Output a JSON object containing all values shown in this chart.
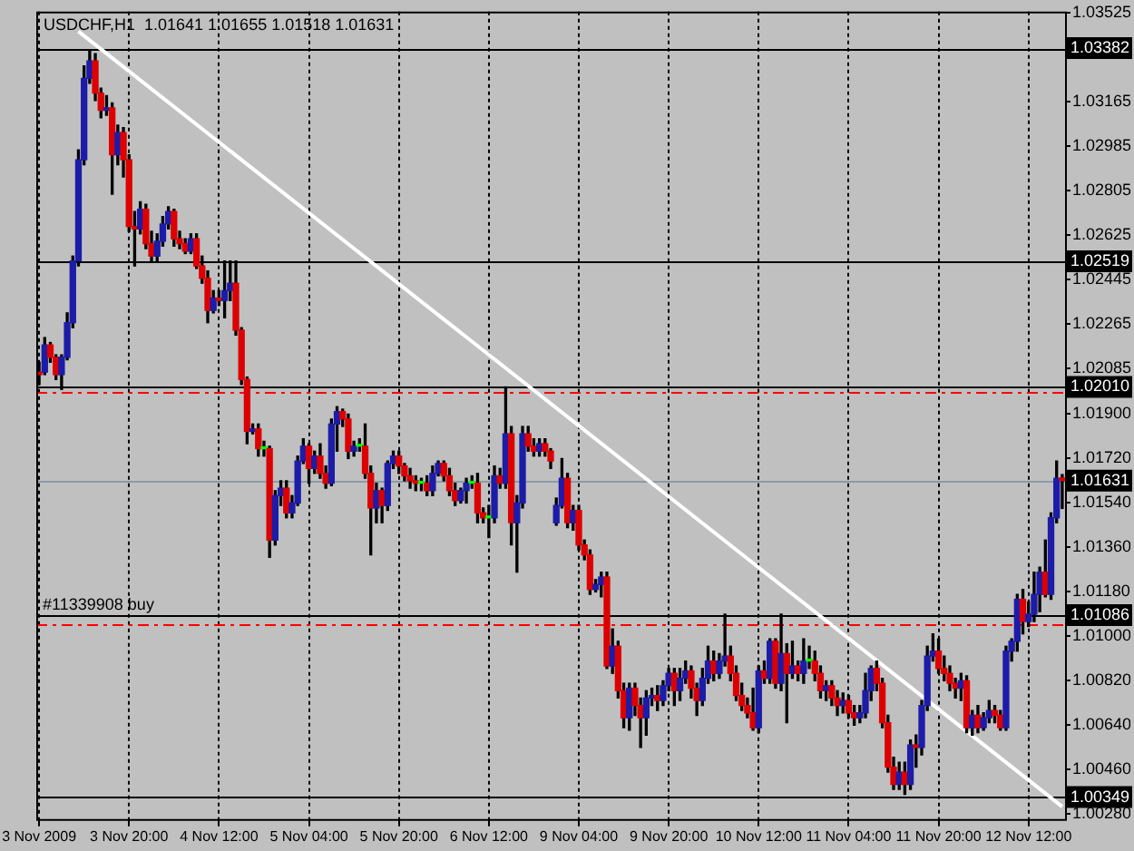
{
  "chart_data": {
    "type": "candlestick",
    "title": "USDCHF,H1  1.01641 1.01655 1.01518 1.01631",
    "categories": [
      "3 Nov 2009",
      null,
      null,
      null,
      null,
      null,
      null,
      null,
      null,
      null,
      null,
      null,
      null,
      null,
      null,
      null,
      "3 Nov 20:00",
      null,
      null,
      null,
      null,
      null,
      null,
      null,
      null,
      null,
      null,
      null,
      null,
      null,
      null,
      null,
      "4 Nov 12:00",
      null,
      null,
      null,
      null,
      null,
      null,
      null,
      null,
      null,
      null,
      null,
      null,
      null,
      null,
      null,
      "5 Nov 04:00",
      null,
      null,
      null,
      null,
      null,
      null,
      null,
      null,
      null,
      null,
      null,
      null,
      null,
      null,
      null,
      "5 Nov 20:00",
      null,
      null,
      null,
      null,
      null,
      null,
      null,
      null,
      null,
      null,
      null,
      null,
      null,
      null,
      null,
      "6 Nov 12:00",
      null,
      null,
      null,
      null,
      null,
      null,
      null,
      null,
      null,
      null,
      null,
      null,
      null,
      null,
      null,
      "9 Nov 04:00",
      null,
      null,
      null,
      null,
      null,
      null,
      null,
      null,
      null,
      null,
      null,
      null,
      null,
      null,
      null,
      "9 Nov 20:00",
      null,
      null,
      null,
      null,
      null,
      null,
      null,
      null,
      null,
      null,
      null,
      null,
      null,
      null,
      null,
      "10 Nov 12:00",
      null,
      null,
      null,
      null,
      null,
      null,
      null,
      null,
      null,
      null,
      null,
      null,
      null,
      null,
      null,
      "11 Nov 04:00",
      null,
      null,
      null,
      null,
      null,
      null,
      null,
      null,
      null,
      null,
      null,
      null,
      null,
      null,
      null,
      "11 Nov 20:00",
      null,
      null,
      null,
      null,
      null,
      null,
      null,
      null,
      null,
      null,
      null,
      null,
      null,
      null,
      null,
      "12 Nov 12:00",
      null,
      null,
      null,
      null,
      null,
      null
    ],
    "ohlc": [
      [
        1.0207,
        1.0211,
        1.0202,
        1.0206
      ],
      [
        1.0207,
        1.0221,
        1.0206,
        1.0218
      ],
      [
        1.0218,
        1.0219,
        1.0211,
        1.0213
      ],
      [
        1.0213,
        1.0214,
        1.0204,
        1.0206
      ],
      [
        1.0206,
        1.0214,
        1.02,
        1.0213
      ],
      [
        1.0213,
        1.0231,
        1.0212,
        1.0227
      ],
      [
        1.0227,
        1.0254,
        1.0225,
        1.0252
      ],
      [
        1.0252,
        1.0297,
        1.025,
        1.0293
      ],
      [
        1.0293,
        1.0331,
        1.0291,
        1.0326
      ],
      [
        1.0326,
        1.0337,
        1.0324,
        1.0333
      ],
      [
        1.0333,
        1.0336,
        1.0317,
        1.032
      ],
      [
        1.032,
        1.0322,
        1.031,
        1.0313
      ],
      [
        1.0313,
        1.0319,
        1.0311,
        1.0314
      ],
      [
        1.0314,
        1.0316,
        1.0279,
        1.0295
      ],
      [
        1.0295,
        1.0307,
        1.0291,
        1.0304
      ],
      [
        1.0304,
        1.0306,
        1.0286,
        1.0293
      ],
      [
        1.0293,
        1.0295,
        1.0264,
        1.0266
      ],
      [
        1.0266,
        1.0272,
        1.025,
        1.0265
      ],
      [
        1.0265,
        1.0276,
        1.0263,
        1.0273
      ],
      [
        1.0273,
        1.0275,
        1.0257,
        1.0259
      ],
      [
        1.0259,
        1.0264,
        1.0252,
        1.0254
      ],
      [
        1.0254,
        1.0263,
        1.0252,
        1.026
      ],
      [
        1.026,
        1.027,
        1.0258,
        1.0267
      ],
      [
        1.0267,
        1.0274,
        1.0265,
        1.0272
      ],
      [
        1.0272,
        1.0273,
        1.0258,
        1.0261
      ],
      [
        1.0261,
        1.0264,
        1.0257,
        1.0259
      ],
      [
        1.0259,
        1.0261,
        1.0255,
        1.0256
      ],
      [
        1.0256,
        1.0263,
        1.0255,
        1.0261
      ],
      [
        1.0261,
        1.0263,
        1.0249,
        1.025
      ],
      [
        1.025,
        1.0254,
        1.0243,
        1.0245
      ],
      [
        1.0245,
        1.0248,
        1.0227,
        1.0232
      ],
      [
        1.0232,
        1.024,
        1.0231,
        1.0237
      ],
      [
        1.0237,
        1.024,
        1.0234,
        1.0236
      ],
      [
        1.0236,
        1.0252,
        1.0229,
        1.024
      ],
      [
        1.024,
        1.0252,
        1.0236,
        1.0243
      ],
      [
        1.0243,
        1.0252,
        1.0222,
        1.0224
      ],
      [
        1.0224,
        1.0225,
        1.0202,
        1.0204
      ],
      [
        1.0204,
        1.0205,
        1.0178,
        1.0183
      ],
      [
        1.0183,
        1.0186,
        1.0182,
        1.0184
      ],
      [
        1.0184,
        1.0186,
        1.0173,
        1.0176
      ],
      [
        1.0176,
        1.0179,
        1.0173,
        1.0176
      ],
      [
        1.0176,
        1.0177,
        1.0132,
        1.0139
      ],
      [
        1.0139,
        1.0159,
        1.0137,
        1.0157
      ],
      [
        1.0157,
        1.0163,
        1.0153,
        1.016
      ],
      [
        1.016,
        1.0163,
        1.0148,
        1.015
      ],
      [
        1.015,
        1.0157,
        1.0148,
        1.0154
      ],
      [
        1.0154,
        1.0173,
        1.0153,
        1.0171
      ],
      [
        1.0171,
        1.018,
        1.017,
        1.0177
      ],
      [
        1.0177,
        1.0178,
        1.0162,
        1.0168
      ],
      [
        1.0168,
        1.0175,
        1.0166,
        1.0173
      ],
      [
        1.0173,
        1.0178,
        1.0164,
        1.0166
      ],
      [
        1.0166,
        1.0169,
        1.016,
        1.0162
      ],
      [
        1.0162,
        1.0188,
        1.0161,
        1.0186
      ],
      [
        1.0186,
        1.0193,
        1.0175,
        1.0191
      ],
      [
        1.0191,
        1.0192,
        1.0185,
        1.0188
      ],
      [
        1.0188,
        1.019,
        1.0172,
        1.0175
      ],
      [
        1.0175,
        1.0179,
        1.0173,
        1.0177
      ],
      [
        1.0177,
        1.018,
        1.0175,
        1.0177
      ],
      [
        1.0177,
        1.0186,
        1.0164,
        1.0166
      ],
      [
        1.0166,
        1.0169,
        1.0133,
        1.0152
      ],
      [
        1.0152,
        1.0162,
        1.0146,
        1.0159
      ],
      [
        1.0159,
        1.016,
        1.0146,
        1.0153
      ],
      [
        1.0153,
        1.0171,
        1.0151,
        1.017
      ],
      [
        1.017,
        1.0175,
        1.0168,
        1.0173
      ],
      [
        1.0173,
        1.0175,
        1.0166,
        1.0169
      ],
      [
        1.0169,
        1.017,
        1.0163,
        1.0165
      ],
      [
        1.0165,
        1.0168,
        1.016,
        1.0163
      ],
      [
        1.0163,
        1.0165,
        1.0159,
        1.0162
      ],
      [
        1.0162,
        1.0164,
        1.0159,
        1.0162
      ],
      [
        1.0162,
        1.0165,
        1.0157,
        1.0159
      ],
      [
        1.0159,
        1.0169,
        1.0157,
        1.0166
      ],
      [
        1.0166,
        1.0171,
        1.0165,
        1.017
      ],
      [
        1.017,
        1.0171,
        1.0163,
        1.0165
      ],
      [
        1.0165,
        1.0168,
        1.0157,
        1.0159
      ],
      [
        1.0159,
        1.0162,
        1.0153,
        1.0155
      ],
      [
        1.0155,
        1.016,
        1.0154,
        1.0159
      ],
      [
        1.0159,
        1.0164,
        1.0154,
        1.0162
      ],
      [
        1.0162,
        1.0165,
        1.016,
        1.0162
      ],
      [
        1.0162,
        1.0166,
        1.0146,
        1.015
      ],
      [
        1.015,
        1.0152,
        1.0146,
        1.0148
      ],
      [
        1.0148,
        1.0153,
        1.014,
        1.0148
      ],
      [
        1.0148,
        1.0169,
        1.0146,
        1.0165
      ],
      [
        1.0165,
        1.0168,
        1.016,
        1.0162
      ],
      [
        1.0162,
        1.0201,
        1.016,
        1.0182
      ],
      [
        1.0182,
        1.0185,
        1.0137,
        1.0146
      ],
      [
        1.0146,
        1.0157,
        1.0126,
        1.0154
      ],
      [
        1.0154,
        1.0185,
        1.0152,
        1.0182
      ],
      [
        1.0182,
        1.0185,
        1.0175,
        1.0177
      ],
      [
        1.0177,
        1.018,
        1.0173,
        1.0175
      ],
      [
        1.0175,
        1.018,
        1.0173,
        1.0178
      ],
      [
        1.0178,
        1.018,
        1.0173,
        1.0175
      ],
      [
        1.0175,
        1.0176,
        1.0168,
        1.0171
      ],
      [
        1.0146,
        1.0156,
        1.0145,
        1.0153
      ],
      [
        1.0153,
        1.0172,
        1.0152,
        1.0164
      ],
      [
        1.0164,
        1.0166,
        1.0144,
        1.0146
      ],
      [
        1.0146,
        1.0153,
        1.0143,
        1.0151
      ],
      [
        1.0151,
        1.0153,
        1.0135,
        1.0137
      ],
      [
        1.0137,
        1.0139,
        1.0131,
        1.0133
      ],
      [
        1.0133,
        1.0135,
        1.0117,
        1.0119
      ],
      [
        1.0119,
        1.0123,
        1.0118,
        1.0121
      ],
      [
        1.0121,
        1.0126,
        1.0116,
        1.0124
      ],
      [
        1.0124,
        1.0126,
        1.0087,
        1.0088
      ],
      [
        1.0088,
        1.0103,
        1.0085,
        1.0096
      ],
      [
        1.0096,
        1.0098,
        1.0075,
        1.0078
      ],
      [
        1.0078,
        1.0081,
        1.0063,
        1.0067
      ],
      [
        1.0067,
        1.0081,
        1.0062,
        1.0079
      ],
      [
        1.0079,
        1.0081,
        1.0068,
        1.0072
      ],
      [
        1.0072,
        1.0075,
        1.0055,
        1.0067
      ],
      [
        1.0067,
        1.0078,
        1.006,
        1.0075
      ],
      [
        1.0075,
        1.0079,
        1.0072,
        1.0076
      ],
      [
        1.0076,
        1.008,
        1.007,
        1.0074
      ],
      [
        1.0074,
        1.0082,
        1.0072,
        1.008
      ],
      [
        1.008,
        1.0087,
        1.0078,
        1.0085
      ],
      [
        1.0085,
        1.0087,
        1.0072,
        1.0078
      ],
      [
        1.0078,
        1.0087,
        1.0074,
        1.0083
      ],
      [
        1.0083,
        1.009,
        1.0081,
        1.0086
      ],
      [
        1.0086,
        1.0088,
        1.0075,
        1.0079
      ],
      [
        1.0079,
        1.0081,
        1.0068,
        1.0074
      ],
      [
        1.0074,
        1.0087,
        1.0072,
        1.0083
      ],
      [
        1.0083,
        1.0096,
        1.0081,
        1.009
      ],
      [
        1.009,
        1.0094,
        1.0082,
        1.0085
      ],
      [
        1.0085,
        1.0093,
        1.0083,
        1.009
      ],
      [
        1.009,
        1.0109,
        1.0088,
        1.0092
      ],
      [
        1.0092,
        1.0096,
        1.0082,
        1.0085
      ],
      [
        1.0085,
        1.0088,
        1.0074,
        1.0076
      ],
      [
        1.0076,
        1.0081,
        1.007,
        1.0072
      ],
      [
        1.0072,
        1.0075,
        1.0067,
        1.0069
      ],
      [
        1.0069,
        1.0079,
        1.0062,
        1.0063
      ],
      [
        1.0063,
        1.0088,
        1.0061,
        1.0086
      ],
      [
        1.0086,
        1.009,
        1.0081,
        1.0083
      ],
      [
        1.0083,
        1.0099,
        1.0081,
        1.0098
      ],
      [
        1.0098,
        1.0099,
        1.0079,
        1.0081
      ],
      [
        1.0081,
        1.0109,
        1.0078,
        1.0093
      ],
      [
        1.0093,
        1.0097,
        1.0065,
        1.0085
      ],
      [
        1.0085,
        1.0098,
        1.0083,
        1.0088
      ],
      [
        1.0088,
        1.009,
        1.0082,
        1.0085
      ],
      [
        1.0085,
        1.0099,
        1.0081,
        1.009
      ],
      [
        1.009,
        1.0096,
        1.0087,
        1.009
      ],
      [
        1.009,
        1.0094,
        1.0082,
        1.0085
      ],
      [
        1.0085,
        1.0088,
        1.0075,
        1.0078
      ],
      [
        1.0078,
        1.0082,
        1.0074,
        1.008
      ],
      [
        1.008,
        1.0082,
        1.0072,
        1.0075
      ],
      [
        1.0075,
        1.0078,
        1.0068,
        1.0072
      ],
      [
        1.0072,
        1.0077,
        1.0069,
        1.0074
      ],
      [
        1.0074,
        1.0076,
        1.0067,
        1.0069
      ],
      [
        1.0069,
        1.0072,
        1.0064,
        1.0067
      ],
      [
        1.0067,
        1.0072,
        1.0065,
        1.0069
      ],
      [
        1.0069,
        1.0085,
        1.0067,
        1.0078
      ],
      [
        1.0078,
        1.0088,
        1.0074,
        1.0087
      ],
      [
        1.0087,
        1.009,
        1.0078,
        1.0081
      ],
      [
        1.0081,
        1.0083,
        1.0063,
        1.0065
      ],
      [
        1.0065,
        1.0068,
        1.0045,
        1.0047
      ],
      [
        1.0047,
        1.0051,
        1.0038,
        1.004
      ],
      [
        1.004,
        1.0049,
        1.0038,
        1.0045
      ],
      [
        1.0045,
        1.0049,
        1.0036,
        1.004
      ],
      [
        1.004,
        1.0058,
        1.0038,
        1.0056
      ],
      [
        1.0056,
        1.006,
        1.0047,
        1.0055
      ],
      [
        1.0055,
        1.0074,
        1.0052,
        1.0072
      ],
      [
        1.0072,
        1.0096,
        1.007,
        1.0092
      ],
      [
        1.0092,
        1.0101,
        1.009,
        1.0094
      ],
      [
        1.0094,
        1.0099,
        1.0085,
        1.0087
      ],
      [
        1.0087,
        1.0092,
        1.0082,
        1.0085
      ],
      [
        1.0085,
        1.0088,
        1.0078,
        1.0081
      ],
      [
        1.0081,
        1.0083,
        1.0075,
        1.0079
      ],
      [
        1.0079,
        1.0085,
        1.0074,
        1.0082
      ],
      [
        1.0082,
        1.0084,
        1.0061,
        1.0063
      ],
      [
        1.0063,
        1.007,
        1.006,
        1.0068
      ],
      [
        1.0068,
        1.0072,
        1.0061,
        1.0063
      ],
      [
        1.0063,
        1.0069,
        1.0062,
        1.0067
      ],
      [
        1.0067,
        1.0074,
        1.0065,
        1.007
      ],
      [
        1.007,
        1.0072,
        1.0065,
        1.0068
      ],
      [
        1.0068,
        1.007,
        1.0062,
        1.0063
      ],
      [
        1.0063,
        1.0096,
        1.0062,
        1.0094
      ],
      [
        1.0094,
        1.0099,
        1.009,
        1.0098
      ],
      [
        1.0098,
        1.0117,
        1.0094,
        1.0115
      ],
      [
        1.0115,
        1.0119,
        1.0101,
        1.0106
      ],
      [
        1.0106,
        1.0114,
        1.0104,
        1.0109
      ],
      [
        1.0109,
        1.0126,
        1.0106,
        1.0117
      ],
      [
        1.0117,
        1.0128,
        1.011,
        1.0126
      ],
      [
        1.0126,
        1.0139,
        1.0116,
        1.0117
      ],
      [
        1.0117,
        1.015,
        1.0115,
        1.0148
      ],
      [
        1.0148,
        1.0171,
        1.0146,
        1.0164
      ],
      [
        1.01641,
        1.01655,
        1.01518,
        1.01631
      ]
    ],
    "colors": [
      "#dd0000",
      "#1c1ca8",
      "#dd0000",
      "#dd0000",
      "#1c1ca8",
      "#1c1ca8",
      "#1c1ca8",
      "#1c1ca8",
      "#1c1ca8",
      "#1c1ca8",
      "#dd0000",
      "#dd0000",
      "#1c1ca8",
      "#dd0000",
      "#1c1ca8",
      "#dd0000",
      "#dd0000",
      "#dd0000",
      "#1c1ca8",
      "#dd0000",
      "#dd0000",
      "#1c1ca8",
      "#1c1ca8",
      "#1c1ca8",
      "#dd0000",
      "#dd0000",
      "#dd0000",
      "#1c1ca8",
      "#dd0000",
      "#dd0000",
      "#dd0000",
      "#1c1ca8",
      "#dd0000",
      "#1c1ca8",
      "#1c1ca8",
      "#dd0000",
      "#dd0000",
      "#dd0000",
      "#1c1ca8",
      "#dd0000",
      "#00ff00",
      "#dd0000",
      "#1c1ca8",
      "#1c1ca8",
      "#dd0000",
      "#1c1ca8",
      "#1c1ca8",
      "#1c1ca8",
      "#dd0000",
      "#1c1ca8",
      "#dd0000",
      "#dd0000",
      "#1c1ca8",
      "#1c1ca8",
      "#dd0000",
      "#dd0000",
      "#1c1ca8",
      "#00ff00",
      "#dd0000",
      "#dd0000",
      "#1c1ca8",
      "#dd0000",
      "#1c1ca8",
      "#1c1ca8",
      "#dd0000",
      "#dd0000",
      "#dd0000",
      "#dd0000",
      "#00ff00",
      "#dd0000",
      "#1c1ca8",
      "#1c1ca8",
      "#dd0000",
      "#dd0000",
      "#dd0000",
      "#1c1ca8",
      "#1c1ca8",
      "#00ff00",
      "#dd0000",
      "#dd0000",
      "#00ff00",
      "#1c1ca8",
      "#dd0000",
      "#1c1ca8",
      "#dd0000",
      "#1c1ca8",
      "#1c1ca8",
      "#dd0000",
      "#dd0000",
      "#1c1ca8",
      "#dd0000",
      "#dd0000",
      "#1c1ca8",
      "#1c1ca8",
      "#dd0000",
      "#1c1ca8",
      "#dd0000",
      "#dd0000",
      "#dd0000",
      "#1c1ca8",
      "#1c1ca8",
      "#dd0000",
      "#1c1ca8",
      "#dd0000",
      "#dd0000",
      "#1c1ca8",
      "#dd0000",
      "#dd0000",
      "#1c1ca8",
      "#1c1ca8",
      "#dd0000",
      "#1c1ca8",
      "#1c1ca8",
      "#dd0000",
      "#1c1ca8",
      "#1c1ca8",
      "#dd0000",
      "#dd0000",
      "#1c1ca8",
      "#1c1ca8",
      "#dd0000",
      "#1c1ca8",
      "#1c1ca8",
      "#dd0000",
      "#dd0000",
      "#dd0000",
      "#dd0000",
      "#dd0000",
      "#1c1ca8",
      "#dd0000",
      "#1c1ca8",
      "#dd0000",
      "#1c1ca8",
      "#dd0000",
      "#1c1ca8",
      "#dd0000",
      "#1c1ca8",
      "#00ff00",
      "#dd0000",
      "#dd0000",
      "#1c1ca8",
      "#dd0000",
      "#dd0000",
      "#1c1ca8",
      "#dd0000",
      "#dd0000",
      "#1c1ca8",
      "#1c1ca8",
      "#1c1ca8",
      "#dd0000",
      "#dd0000",
      "#dd0000",
      "#dd0000",
      "#1c1ca8",
      "#dd0000",
      "#1c1ca8",
      "#dd0000",
      "#1c1ca8",
      "#1c1ca8",
      "#1c1ca8",
      "#dd0000",
      "#dd0000",
      "#dd0000",
      "#dd0000",
      "#1c1ca8",
      "#dd0000",
      "#1c1ca8",
      "#dd0000",
      "#1c1ca8",
      "#1c1ca8",
      "#dd0000",
      "#dd0000",
      "#1c1ca8",
      "#1c1ca8",
      "#1c1ca8",
      "#dd0000",
      "#1c1ca8",
      "#1c1ca8",
      "#1c1ca8",
      "#dd0000",
      "#1c1ca8",
      "#1c1ca8",
      "#dd0000"
    ],
    "series": [
      {
        "type": "line",
        "color": "#ffffff",
        "values": [
          null,
          null,
          null,
          null,
          null,
          null,
          null,
          1.0345,
          null,
          null,
          null,
          null,
          null,
          null,
          null,
          null,
          null,
          null,
          null,
          null,
          null,
          null,
          null,
          null,
          null,
          null,
          null,
          null,
          null,
          null,
          null,
          null,
          null,
          null,
          null,
          null,
          null,
          null,
          null,
          null,
          null,
          null,
          null,
          null,
          null,
          null,
          null,
          null,
          null,
          null,
          null,
          null,
          null,
          null,
          null,
          null,
          null,
          null,
          null,
          null,
          null,
          null,
          null,
          null,
          null,
          null,
          null,
          null,
          null,
          null,
          null,
          null,
          null,
          null,
          null,
          null,
          null,
          null,
          null,
          null,
          null,
          null,
          null,
          null,
          null,
          null,
          null,
          null,
          null,
          null,
          null,
          null,
          null,
          null,
          null,
          null,
          null,
          null,
          null,
          null,
          null,
          null,
          null,
          null,
          null,
          null,
          null,
          null,
          null,
          null,
          null,
          null,
          null,
          null,
          null,
          null,
          null,
          null,
          null,
          null,
          null,
          null,
          null,
          null,
          null,
          null,
          null,
          null,
          null,
          null,
          null,
          null,
          null,
          null,
          null,
          null,
          null,
          null,
          null,
          null,
          null,
          null,
          null,
          null,
          null,
          null,
          null,
          null,
          null,
          null,
          null,
          null,
          null,
          null,
          null,
          null,
          null,
          null,
          null,
          null,
          null,
          null,
          null,
          null,
          null,
          null,
          null,
          null,
          null,
          null,
          null,
          null,
          null,
          null,
          null,
          null,
          null,
          null,
          null,
          null,
          null,
          null,
          1.0031
        ]
      }
    ],
    "ylim": [
      1.0026,
      1.0353
    ],
    "yticks": [
      1.03525,
      {
        "value": 1.03345,
        "label": null
      },
      1.03165,
      1.02985,
      1.02805,
      1.02625,
      1.02445,
      1.02265,
      1.02085,
      {
        "value": 1.019,
        "label": "1.01900"
      },
      {
        "value": 1.0172,
        "label": "1.01720"
      },
      {
        "value": 1.0154,
        "label": "1.01540"
      },
      {
        "value": 1.0136,
        "label": "1.01360"
      },
      {
        "value": 1.0118,
        "label": "1.01180"
      },
      {
        "value": 1.01,
        "label": "1.01000"
      },
      {
        "value": 1.0082,
        "label": "1.00820"
      },
      {
        "value": 1.0064,
        "label": "1.00640"
      },
      {
        "value": 1.0046,
        "label": "1.00460"
      },
      {
        "value": 1.0028,
        "label": "1.00280"
      }
    ],
    "ref_lines": [
      {
        "axis": "y",
        "value": 1.03382,
        "label": "1.03382",
        "color": "#000000"
      },
      {
        "axis": "y",
        "value": 1.02519,
        "label": "1.02519",
        "color": "#000000"
      },
      {
        "axis": "y",
        "value": 1.0201,
        "label": "1.02010",
        "color": "#000000"
      },
      {
        "axis": "y",
        "value": 1.0199,
        "color": "#ff0000",
        "line_style": "dashed"
      },
      {
        "axis": "y",
        "value": 1.01631,
        "label": "1.01631",
        "color": "#8c9aa6"
      },
      {
        "axis": "y",
        "value": 1.01086,
        "label": "1.01086",
        "color": "#000000"
      },
      {
        "axis": "y",
        "value": 1.0105,
        "color": "#ff0000",
        "line_style": "dashed"
      },
      {
        "axis": "y",
        "value": 1.00349,
        "label": "1.00349",
        "color": "#000000"
      }
    ],
    "annotations": [
      {
        "text": "#11339908 buy",
        "x": "3 Nov 2009",
        "y": 1.01086
      }
    ],
    "grid": "x"
  }
}
